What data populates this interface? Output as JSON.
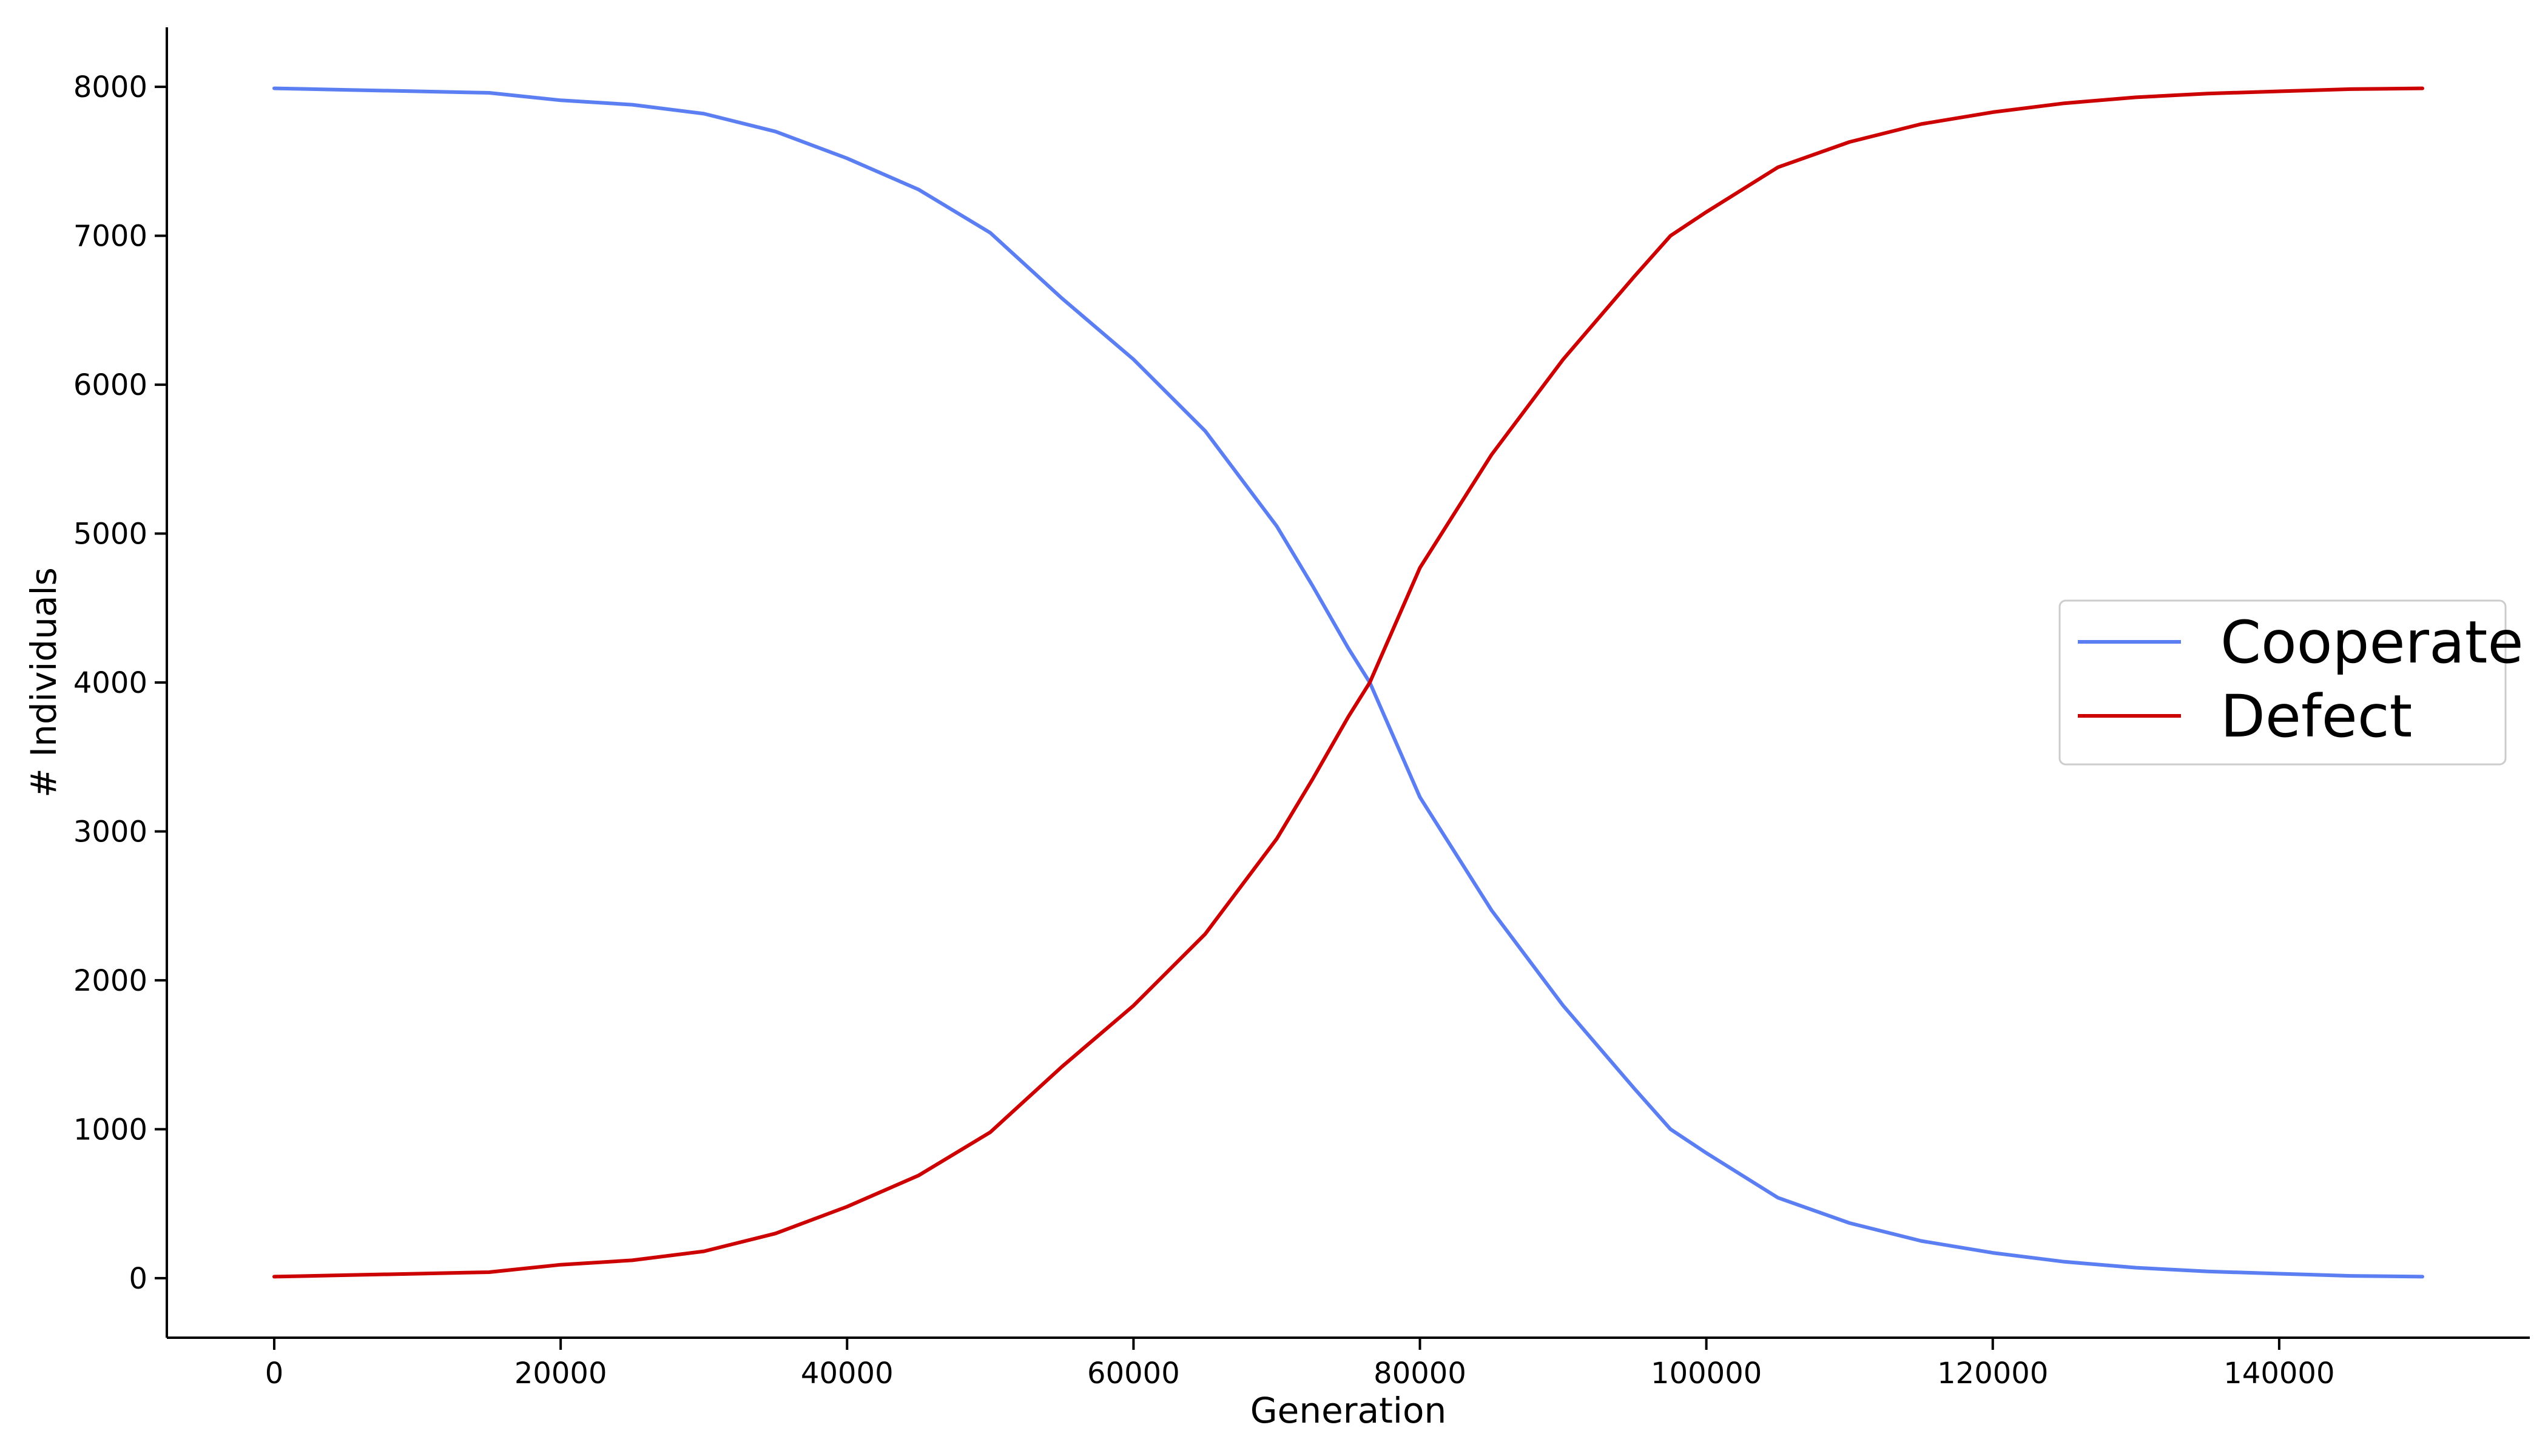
{
  "chart_data": {
    "type": "line",
    "xlabel": "Generation",
    "ylabel": "# Individuals",
    "xlim": [
      -7500,
      157500
    ],
    "ylim": [
      -400,
      8400
    ],
    "xticks": [
      0,
      20000,
      40000,
      60000,
      80000,
      100000,
      120000,
      140000
    ],
    "yticks": [
      0,
      1000,
      2000,
      3000,
      4000,
      5000,
      6000,
      7000,
      8000
    ],
    "grid": false,
    "legend_position": "right",
    "series": [
      {
        "name": "Cooperate",
        "color": "#5b7ff2",
        "x": [
          0,
          5000,
          10000,
          15000,
          20000,
          25000,
          30000,
          35000,
          40000,
          45000,
          50000,
          55000,
          60000,
          65000,
          70000,
          72500,
          75000,
          76500,
          80000,
          85000,
          90000,
          95000,
          97500,
          100000,
          105000,
          110000,
          115000,
          120000,
          125000,
          130000,
          135000,
          140000,
          145000,
          150000
        ],
        "y": [
          7990,
          7980,
          7970,
          7960,
          7910,
          7880,
          7820,
          7700,
          7520,
          7310,
          7020,
          6580,
          6170,
          5690,
          5050,
          4650,
          4230,
          4000,
          3230,
          2470,
          1830,
          1270,
          1000,
          840,
          540,
          370,
          250,
          170,
          110,
          70,
          45,
          30,
          15,
          10
        ]
      },
      {
        "name": "Defect",
        "color": "#cc0000",
        "x": [
          0,
          5000,
          10000,
          15000,
          20000,
          25000,
          30000,
          35000,
          40000,
          45000,
          50000,
          55000,
          60000,
          65000,
          70000,
          72500,
          75000,
          76500,
          80000,
          85000,
          90000,
          95000,
          97500,
          100000,
          105000,
          110000,
          115000,
          120000,
          125000,
          130000,
          135000,
          140000,
          145000,
          150000
        ],
        "y": [
          10,
          20,
          30,
          40,
          90,
          120,
          180,
          300,
          480,
          690,
          980,
          1420,
          1830,
          2310,
          2950,
          3350,
          3770,
          4000,
          4770,
          5530,
          6170,
          6730,
          7000,
          7160,
          7460,
          7630,
          7750,
          7830,
          7890,
          7930,
          7955,
          7970,
          7985,
          7990
        ]
      }
    ]
  }
}
